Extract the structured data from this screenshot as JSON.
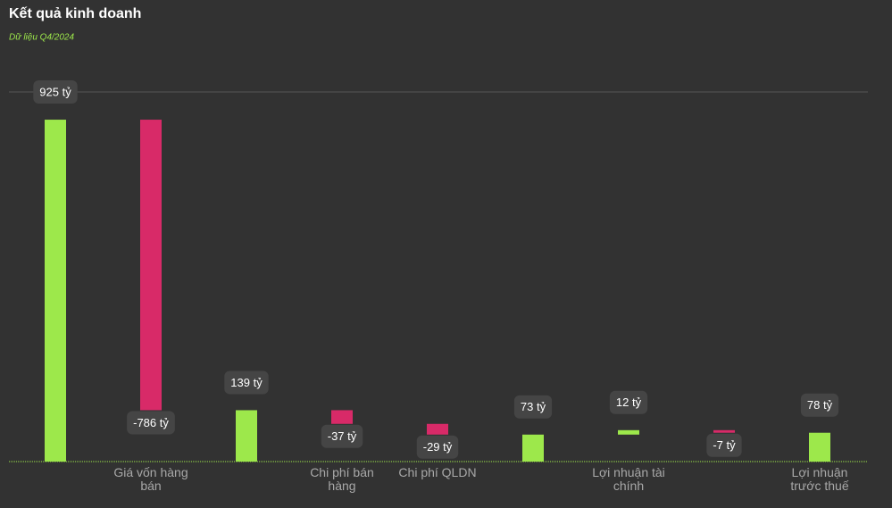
{
  "chart_data": {
    "type": "waterfall",
    "title": "Kết quả kinh doanh",
    "subtitle": "Dữ liệu Q4/2024",
    "categories": [
      null,
      "Giá vốn hàng bán",
      null,
      "Chi phí bán hàng",
      "Chi phí QLDN",
      null,
      "Lợi nhuận tài chính",
      null,
      "Lợi nhuận trước thuế"
    ],
    "values": [
      925,
      -786,
      139,
      -37,
      -29,
      73,
      12,
      -7,
      78
    ],
    "value_labels": [
      "925 tỷ",
      "-786 tỷ",
      "139 tỷ",
      "-37 tỷ",
      "-29 tỷ",
      "73 tỷ",
      "12 tỷ",
      "-7 tỷ",
      "78 tỷ"
    ],
    "colors": {
      "positive": "#9de84b",
      "negative": "#d82a68"
    },
    "ylim": [
      0,
      1000
    ],
    "yticks": [
      1000
    ],
    "grid": true
  }
}
